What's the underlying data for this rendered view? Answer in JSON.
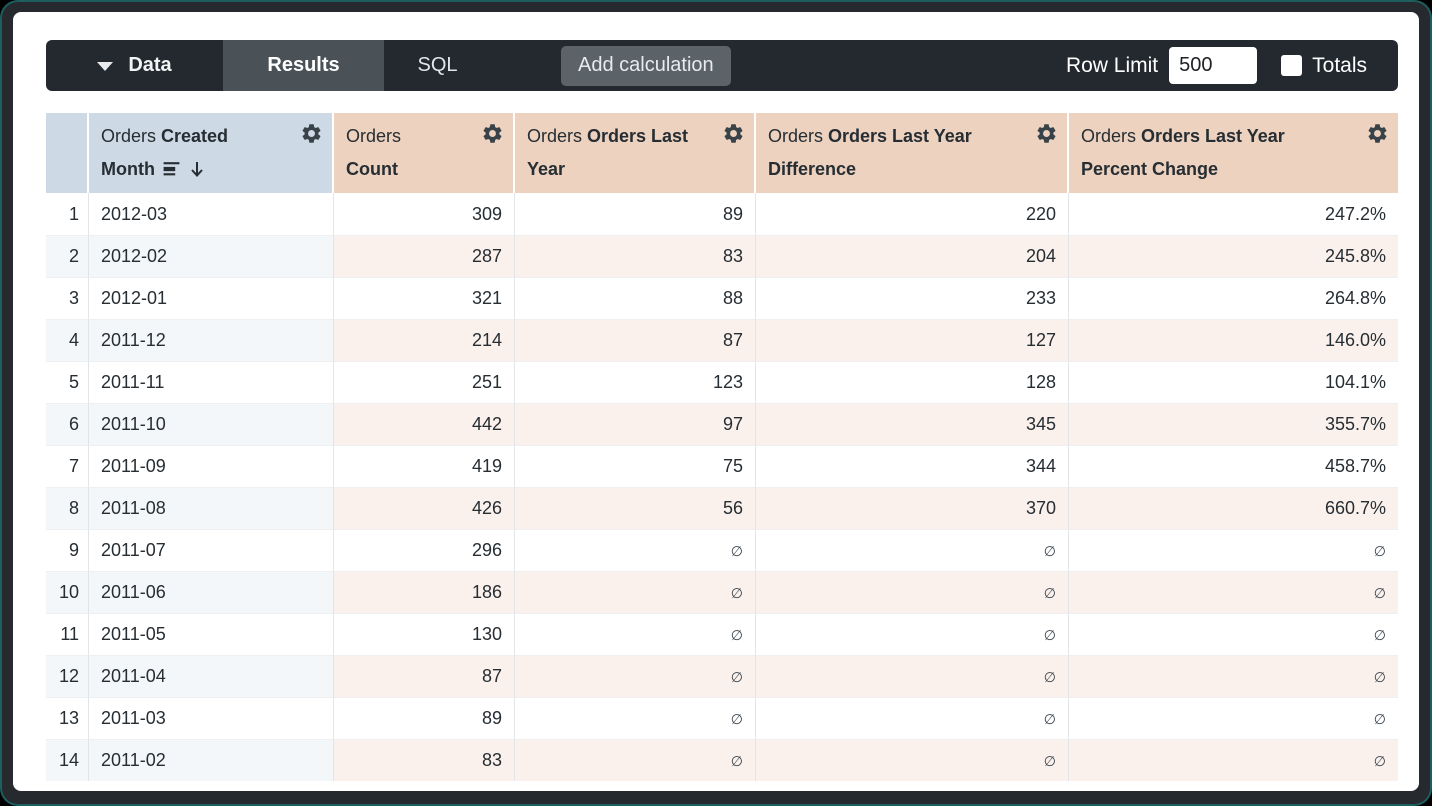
{
  "topbar": {
    "data_tab": "Data",
    "results_tab": "Results",
    "sql_tab": "SQL",
    "add_calculation": "Add calculation",
    "row_limit_label": "Row Limit",
    "row_limit_value": "500",
    "totals_label": "Totals"
  },
  "table": {
    "columns": [
      {
        "prefix": "Orders",
        "label": "Created Month",
        "type": "dimension",
        "sorted_desc": true
      },
      {
        "prefix": "Orders",
        "label": "Count",
        "type": "measure",
        "sorted_desc": false
      },
      {
        "prefix": "Orders",
        "label": "Orders Last Year",
        "type": "measure",
        "sorted_desc": false
      },
      {
        "prefix": "Orders",
        "label": "Orders Last Year Difference",
        "type": "measure",
        "sorted_desc": false
      },
      {
        "prefix": "Orders",
        "label": "Orders Last Year Percent Change",
        "type": "measure",
        "sorted_desc": false
      }
    ],
    "null_symbol": "∅",
    "rows": [
      {
        "index": "1",
        "month": "2012-03",
        "count": "309",
        "last_year": "89",
        "difference": "220",
        "percent_change": "247.2%"
      },
      {
        "index": "2",
        "month": "2012-02",
        "count": "287",
        "last_year": "83",
        "difference": "204",
        "percent_change": "245.8%"
      },
      {
        "index": "3",
        "month": "2012-01",
        "count": "321",
        "last_year": "88",
        "difference": "233",
        "percent_change": "264.8%"
      },
      {
        "index": "4",
        "month": "2011-12",
        "count": "214",
        "last_year": "87",
        "difference": "127",
        "percent_change": "146.0%"
      },
      {
        "index": "5",
        "month": "2011-11",
        "count": "251",
        "last_year": "123",
        "difference": "128",
        "percent_change": "104.1%"
      },
      {
        "index": "6",
        "month": "2011-10",
        "count": "442",
        "last_year": "97",
        "difference": "345",
        "percent_change": "355.7%"
      },
      {
        "index": "7",
        "month": "2011-09",
        "count": "419",
        "last_year": "75",
        "difference": "344",
        "percent_change": "458.7%"
      },
      {
        "index": "8",
        "month": "2011-08",
        "count": "426",
        "last_year": "56",
        "difference": "370",
        "percent_change": "660.7%"
      },
      {
        "index": "9",
        "month": "2011-07",
        "count": "296",
        "last_year": "∅",
        "difference": "∅",
        "percent_change": "∅"
      },
      {
        "index": "10",
        "month": "2011-06",
        "count": "186",
        "last_year": "∅",
        "difference": "∅",
        "percent_change": "∅"
      },
      {
        "index": "11",
        "month": "2011-05",
        "count": "130",
        "last_year": "∅",
        "difference": "∅",
        "percent_change": "∅"
      },
      {
        "index": "12",
        "month": "2011-04",
        "count": "87",
        "last_year": "∅",
        "difference": "∅",
        "percent_change": "∅"
      },
      {
        "index": "13",
        "month": "2011-03",
        "count": "89",
        "last_year": "∅",
        "difference": "∅",
        "percent_change": "∅"
      },
      {
        "index": "14",
        "month": "2011-02",
        "count": "83",
        "last_year": "∅",
        "difference": "∅",
        "percent_change": "∅"
      }
    ]
  },
  "colors": {
    "topbar_bg": "#23292e",
    "active_tab_bg": "#4a5157",
    "button_bg": "#5b6369",
    "dimension_header": "#cdd9e4",
    "measure_header": "#ecd2bf",
    "dimension_stripe": "#f4f7f9",
    "measure_stripe": "#faf1ec",
    "text": "#262d33",
    "frame_accent": "#1c5f5e"
  }
}
